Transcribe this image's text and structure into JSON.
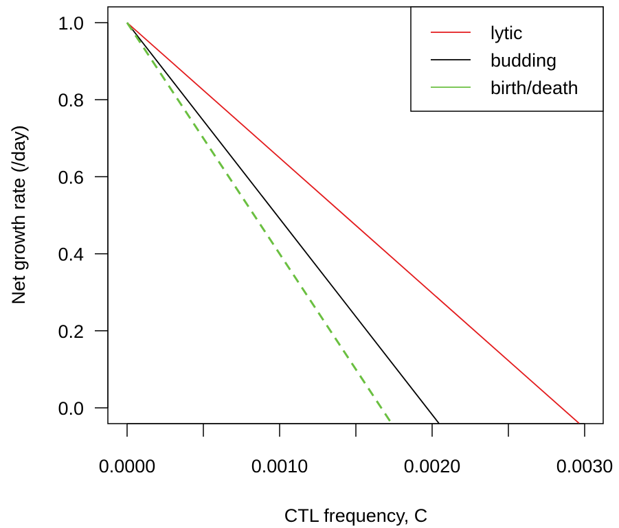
{
  "chart_data": {
    "type": "line",
    "title": "",
    "xlabel": "CTL frequency, C",
    "ylabel": "Net growth rate (/day)",
    "xlim": [
      -0.000125,
      0.0031
    ],
    "ylim": [
      -0.04,
      1.04
    ],
    "x_ticks": [
      0.0,
      0.0005,
      0.001,
      0.0015,
      0.002,
      0.0025,
      0.003
    ],
    "x_tick_labels": [
      "0.0000",
      "",
      "0.0010",
      "",
      "0.0020",
      "",
      "0.0030"
    ],
    "y_ticks": [
      0.0,
      0.2,
      0.4,
      0.6,
      0.8,
      1.0
    ],
    "y_tick_labels": [
      "0.0",
      "0.2",
      "0.4",
      "0.6",
      "0.8",
      "1.0"
    ],
    "legend_position": "top-right",
    "series": [
      {
        "name": "lytic",
        "color": "#e31a1c",
        "dash": "solid",
        "x": [
          0.0,
          0.002963
        ],
        "y": [
          1.0,
          -0.04
        ]
      },
      {
        "name": "budding",
        "color": "#000000",
        "dash": "solid",
        "x": [
          0.0,
          0.002044
        ],
        "y": [
          1.0,
          -0.04
        ]
      },
      {
        "name": "birth/death",
        "color": "#6abf40",
        "dash": "dashed",
        "x": [
          0.0,
          0.001733
        ],
        "y": [
          1.0,
          -0.04
        ]
      }
    ]
  }
}
